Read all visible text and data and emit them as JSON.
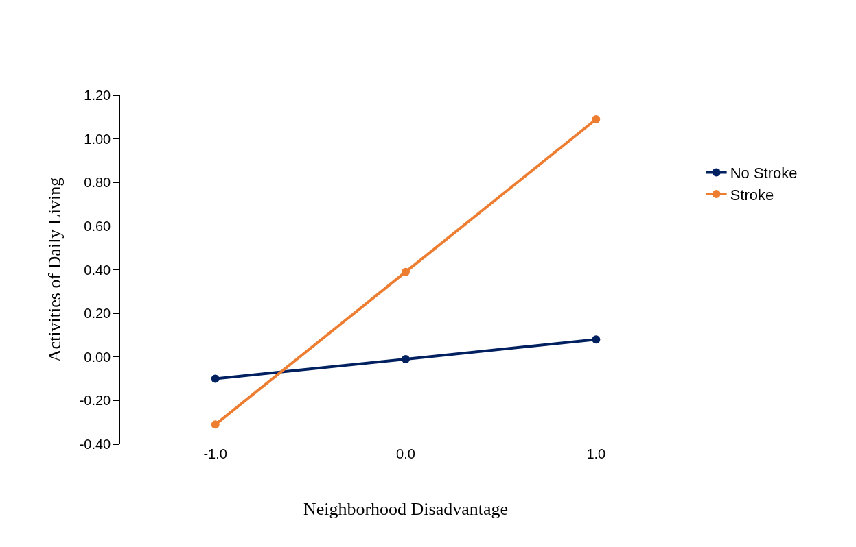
{
  "chart_data": {
    "type": "line",
    "xlabel": "Neighborhood Disadvantage",
    "ylabel": "Activities of Daily Living",
    "categories": [
      "-1.0",
      "0.0",
      "1.0"
    ],
    "series": [
      {
        "name": "No Stroke",
        "color": "#002060",
        "values": [
          -0.1,
          -0.01,
          0.08
        ]
      },
      {
        "name": "Stroke",
        "color": "#ed7d31",
        "values": [
          -0.31,
          0.39,
          1.09
        ]
      }
    ],
    "ylim": [
      -0.4,
      1.2
    ],
    "yticks": [
      {
        "value": -0.4,
        "label": "-0.40"
      },
      {
        "value": -0.2,
        "label": "-0.20"
      },
      {
        "value": 0,
        "label": "0.00"
      },
      {
        "value": 0.2,
        "label": "0.20"
      },
      {
        "value": 0.4,
        "label": "0.40"
      },
      {
        "value": 0.6,
        "label": "0.60"
      },
      {
        "value": 0.8,
        "label": "0.80"
      },
      {
        "value": 1.0,
        "label": "1.00"
      },
      {
        "value": 1.2,
        "label": "1.20"
      }
    ],
    "legend": "right",
    "marker": "circle",
    "line_style": "solid"
  }
}
